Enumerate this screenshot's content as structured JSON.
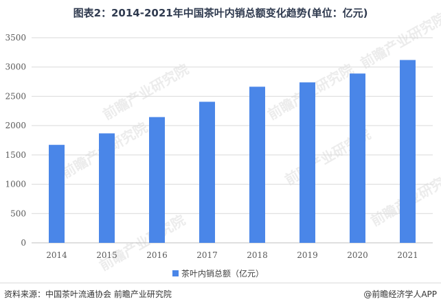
{
  "title": "图表2：2014-2021年中国茶叶内销总额变化趋势(单位：亿元)",
  "watermark": "前瞻产业研究院",
  "footer": {
    "source": "资料来源：中国茶叶流通协会 前瞻产业研究院",
    "credit": "@前瞻经济学人APP"
  },
  "colors": {
    "bar": "#4a86e8",
    "grid": "#d9d9d9",
    "axis": "#bfbfbf"
  },
  "chart_data": {
    "type": "bar",
    "title": "图表2：2014-2021年中国茶叶内销总额变化趋势(单位：亿元)",
    "categories": [
      "2014",
      "2015",
      "2016",
      "2017",
      "2018",
      "2019",
      "2020",
      "2021"
    ],
    "series": [
      {
        "name": "茶叶内销总额（亿元）",
        "values": [
          1672,
          1868,
          2146,
          2407,
          2664,
          2738,
          2889,
          3120
        ]
      }
    ],
    "ylim": [
      0,
      3500
    ],
    "yticks": [
      0,
      500,
      1000,
      1500,
      2000,
      2500,
      3000,
      3500
    ],
    "grid": true,
    "legend": "bottom"
  }
}
